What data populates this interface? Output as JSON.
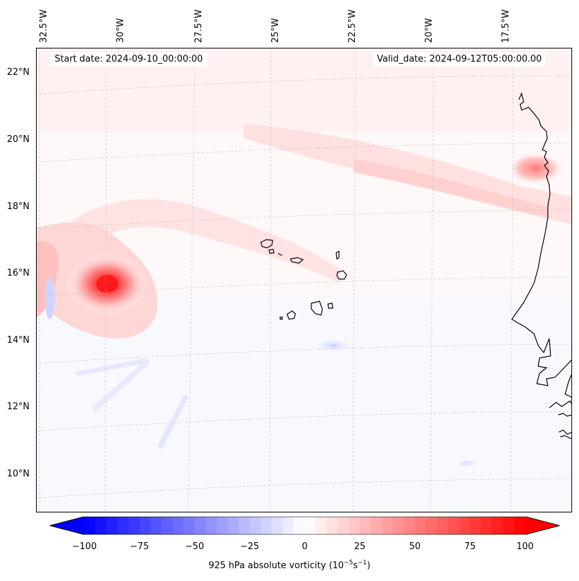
{
  "header": {
    "start_date": "Start date: 2024-09-10_00:00:00",
    "valid_date": "Valid_date: 2024-09-12T05:00:00.00"
  },
  "axes": {
    "longitude_labels": [
      "32.5°W",
      "30°W",
      "27.5°W",
      "25°W",
      "22.5°W",
      "20°W",
      "17.5°W"
    ],
    "latitude_labels": [
      "22°N",
      "20°N",
      "18°N",
      "16°N",
      "14°N",
      "12°N",
      "10°N"
    ]
  },
  "colorbar": {
    "ticks": [
      "−100",
      "−75",
      "−50",
      "−25",
      "0",
      "25",
      "50",
      "75",
      "100"
    ],
    "label_main": "925 hPa absolute vorticity (10",
    "label_exp1": "−5",
    "label_mid": "s",
    "label_exp2": "−1",
    "label_end": ")",
    "min_color": "#0000ff",
    "mid_color": "#ffffff",
    "max_color": "#ff0000"
  },
  "map_features": {
    "vortex_center": "15.7°N 29.9°W",
    "coastline": "West Africa",
    "islands": "Cape Verde"
  }
}
